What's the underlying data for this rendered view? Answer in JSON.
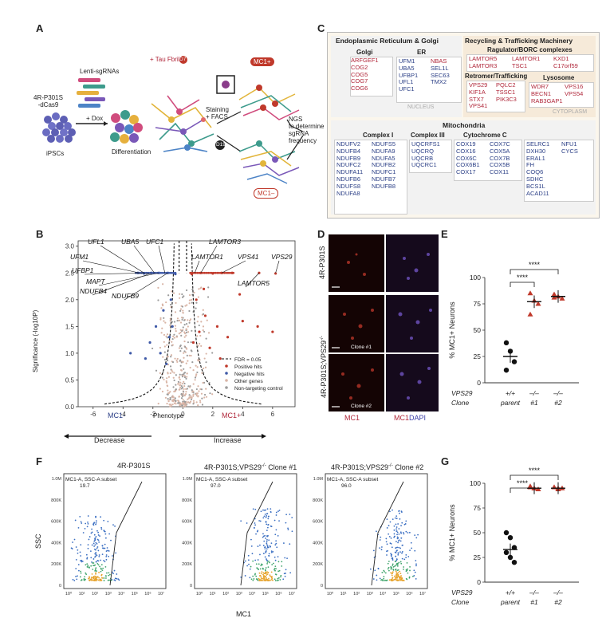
{
  "panel_labels": {
    "A": "A",
    "B": "B",
    "C": "C",
    "D": "D",
    "E": "E",
    "F": "F",
    "G": "G"
  },
  "panelA": {
    "cell_line": "4R-P301S\n-dCas9",
    "ipscs": "iPSCs",
    "lenti": "Lenti-sgRNAs",
    "dox": "+ Dox",
    "differentiation": "Differentiation",
    "tau": "+ Tau Fbrils",
    "d7": "D7",
    "staining": "Staining\n+ FACS",
    "d19": "D19",
    "mc1_pos": "MC1+",
    "mc1_neg": "MC1–",
    "ngs": "NGS\nto determine\nsgRNA\nfrequency"
  },
  "panelC": {
    "er_golgi_title": "Endoplasmic Reticulum & Golgi",
    "golgi_title": "Golgi",
    "golgi_genes": [
      "ARFGEF1",
      "COG2",
      "COG5",
      "COG7",
      "COG6"
    ],
    "er_title": "ER",
    "er_col1": [
      "UFM1",
      "UBA5",
      "UFBP1",
      "UFL1",
      "UFC1"
    ],
    "er_col2": [
      "NBAS",
      "SEL1L",
      "SEC63",
      "TMX2"
    ],
    "nucleus": "NUCLEUS",
    "recycling_title": "Recycling & Trafficking Machinery",
    "ragulator_title": "Ragulator/BORC complexes",
    "ragulator_col1": [
      "LAMTOR5",
      "LAMTOR3"
    ],
    "ragulator_col2": [
      "LAMTOR1",
      "TSC1"
    ],
    "ragulator_col3": [
      "KXD1",
      "C17orf59"
    ],
    "retromer_title": "Retromer/Trafficking",
    "retromer_col1": [
      "VPS29",
      "KIF1A",
      "STX7",
      "VPS41"
    ],
    "retromer_col2": [
      "PQLC2",
      "TSSC1",
      "PIK3C3"
    ],
    "lysosome_title": "Lysosome",
    "lysosome_col1": [
      "WDR7",
      "BECN1",
      "RAB3GAP1"
    ],
    "lysosome_col2": [
      "VPS16",
      "VPS54"
    ],
    "cytoplasm": "CYTOPLASM",
    "mito_title": "Mitochondria",
    "complex1_title": "Complex I",
    "complex1_col1": [
      "NDUFV2",
      "NDUFB4",
      "NDUFB9",
      "NDUFC2",
      "NDUFA11",
      "NDUFB6",
      "NDUFS8",
      "NDUFA8"
    ],
    "complex1_col2": [
      "NDUFS5",
      "NDUFA9",
      "NDUFA5",
      "NDUFB2",
      "NDUFC1",
      "NDUFB7",
      "NDUFB8"
    ],
    "complex3_title": "Complex III",
    "complex3_genes": [
      "UQCRFS1",
      "UQCRQ",
      "UQCRB",
      "UQCRC1"
    ],
    "cytc_title": "Cytochrome C",
    "cytc_col1": [
      "COX19",
      "COX16",
      "COX6C",
      "COX6B1",
      "COX17"
    ],
    "cytc_col2": [
      "COX7C",
      "COX5A",
      "COX7B",
      "COX5B",
      "COX11"
    ],
    "mito_other_col1": [
      "SELRC1",
      "DXH30",
      "ERAL1",
      "FH",
      "COQ6",
      "SDHC",
      "BCS1L",
      "ACAD11"
    ],
    "mito_other_col2": [
      "NFU1",
      "CYCS"
    ]
  },
  "panelD": {
    "row1_label": "4R-P301S",
    "row2_label": "4R-P301S;VPS29",
    "row2_sup": "-/-",
    "clone1": "Clone #1",
    "clone2": "Clone #2",
    "mc1": "MC1",
    "dapi": "DAPI"
  },
  "panelF": {
    "ylabel": "SSC",
    "xlabel": "MC1",
    "plots": [
      {
        "title": "4R-P301S",
        "gate": "MC1-A, SSC-A subset",
        "value": "19.7"
      },
      {
        "title": "4R-P301S;VPS29",
        "clone": "Clone #1",
        "gate": "MC1-A, SSC-A subset",
        "value": "97.0"
      },
      {
        "title": "4R-P301S;VPS29",
        "clone": "Clone #2",
        "gate": "MC1-A, SSC-A subset",
        "value": "96.0"
      }
    ],
    "y_ticks": [
      "1.0M",
      "800K",
      "600K",
      "400K",
      "200K",
      "0"
    ],
    "x_ticks": [
      "10⁰",
      "10¹",
      "10²",
      "10³",
      "10⁴",
      "10⁵",
      "10⁶",
      "10⁷"
    ],
    "super": "-/-"
  },
  "chart_data": [
    {
      "type": "scatter",
      "id": "B",
      "title": "",
      "xlabel": "Phenotype",
      "ylabel": "Significance (-log10P)",
      "xlim": [
        -7,
        7.5
      ],
      "ylim": [
        0,
        3.1
      ],
      "x_ticks": [
        -6,
        -4,
        -2,
        0,
        2,
        4,
        6
      ],
      "y_ticks": [
        0.0,
        0.5,
        1.0,
        1.5,
        2.0,
        2.5,
        3.0
      ],
      "left_label": "MC1-",
      "right_label": "MC1+",
      "decrease": "Decrease",
      "increase": "Increase",
      "legend": [
        "FDR = 0.05",
        "Positive hits",
        "Negative hits",
        "Other genes",
        "Non-targeting control"
      ],
      "annotations_left": [
        "UFL1",
        "UBA5",
        "UFC1",
        "UFM1",
        "UFBP1",
        "MAPT",
        "NDUFB4",
        "NDUFB9"
      ],
      "annotations_right": [
        "LAMTOR3",
        "LAMTOR1",
        "VPS41",
        "VPS29",
        "LAMTOR5"
      ],
      "positive_hits": [
        [
          0.6,
          2.48
        ],
        [
          1.2,
          2.5
        ],
        [
          2.0,
          2.49
        ],
        [
          2.6,
          2.5
        ],
        [
          3.3,
          2.5
        ],
        [
          5.1,
          2.5
        ],
        [
          6.2,
          2.49
        ],
        [
          0.9,
          2.0
        ],
        [
          1.5,
          1.7
        ],
        [
          2.3,
          1.5
        ],
        [
          3.0,
          1.3
        ],
        [
          1.1,
          1.4
        ],
        [
          1.8,
          1.1
        ],
        [
          2.5,
          0.9
        ],
        [
          0.7,
          1.2
        ],
        [
          4.0,
          1.6
        ],
        [
          5.0,
          1.5
        ],
        [
          6.0,
          1.4
        ],
        [
          1.4,
          2.2
        ],
        [
          3.8,
          2.1
        ]
      ],
      "negative_hits": [
        [
          -0.5,
          2.48
        ],
        [
          -1.0,
          2.5
        ],
        [
          -1.6,
          2.5
        ],
        [
          -2.1,
          2.5
        ],
        [
          -2.6,
          2.49
        ],
        [
          -3.0,
          2.5
        ],
        [
          -0.8,
          2.0
        ],
        [
          -1.3,
          1.8
        ],
        [
          -1.8,
          1.5
        ],
        [
          -2.2,
          1.2
        ],
        [
          -0.9,
          1.3
        ],
        [
          -1.5,
          1.0
        ],
        [
          -2.5,
          0.9
        ],
        [
          -0.7,
          1.5
        ],
        [
          -1.1,
          0.8
        ],
        [
          -3.5,
          1.0
        ]
      ]
    },
    {
      "type": "dot",
      "id": "E",
      "ylabel": "% MC1+ Neurons",
      "ylim": [
        0,
        100
      ],
      "y_ticks": [
        0,
        25,
        50,
        75,
        100
      ],
      "row1_label": "VPS29",
      "row2_label": "Clone",
      "genotypes": [
        "+/+",
        "–/–",
        "–/–"
      ],
      "clones": [
        "parent",
        "#1",
        "#2"
      ],
      "groups": [
        {
          "name": "parent",
          "values": [
            38,
            30,
            20,
            12
          ],
          "mean": 25,
          "color": "#111111"
        },
        {
          "name": "#1",
          "values": [
            85,
            78,
            75,
            65
          ],
          "mean": 77,
          "color": "#c0392b"
        },
        {
          "name": "#2",
          "values": [
            84,
            82,
            80,
            81
          ],
          "mean": 82,
          "color": "#c0392b"
        }
      ],
      "significance": [
        "****",
        "****"
      ]
    },
    {
      "type": "dot",
      "id": "G",
      "ylabel": "% MC1+ Neurons",
      "ylim": [
        0,
        100
      ],
      "y_ticks": [
        0,
        25,
        50,
        75,
        100
      ],
      "row1_label": "VPS29",
      "row2_label": "Clone",
      "genotypes": [
        "+/+",
        "–/–",
        "–/–"
      ],
      "clones": [
        "parent",
        "#1",
        "#2"
      ],
      "groups": [
        {
          "name": "parent",
          "values": [
            50,
            45,
            35,
            30,
            25,
            20
          ],
          "mean": 33,
          "color": "#111111"
        },
        {
          "name": "#1",
          "values": [
            97,
            95,
            94,
            96,
            95
          ],
          "mean": 95,
          "color": "#c0392b"
        },
        {
          "name": "#2",
          "values": [
            96,
            95,
            95,
            96,
            94
          ],
          "mean": 95,
          "color": "#c0392b"
        }
      ],
      "significance": [
        "****",
        "****"
      ]
    }
  ]
}
